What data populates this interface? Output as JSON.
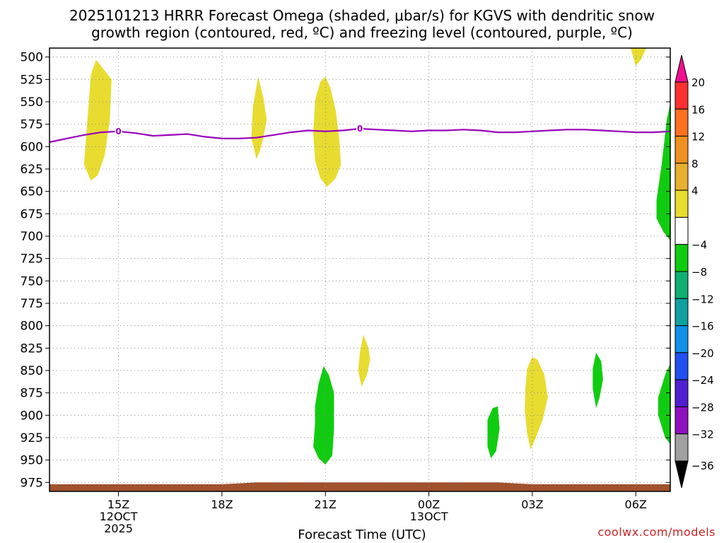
{
  "chart_data": {
    "type": "heatmap",
    "title_line1": "2025101213 HRRR Forecast Omega (shaded, μbar/s) for KGVS with dendritic snow",
    "title_line2": "growth region (contoured, red, ºC) and freezing level (contoured, purple, ºC)",
    "xlabel": "Forecast Time (UTC)",
    "credit": "coolwx.com/models",
    "x_range_hours": [
      13,
      31
    ],
    "y_range_hpa": [
      490,
      985
    ],
    "y_ticks": [
      500,
      525,
      550,
      575,
      600,
      625,
      650,
      675,
      700,
      725,
      750,
      775,
      800,
      825,
      850,
      875,
      900,
      925,
      950,
      975
    ],
    "x_ticks": [
      {
        "hour": 15,
        "lines": [
          "15Z",
          "12OCT",
          "2025"
        ]
      },
      {
        "hour": 18,
        "lines": [
          "18Z"
        ]
      },
      {
        "hour": 21,
        "lines": [
          "21Z"
        ]
      },
      {
        "hour": 24,
        "lines": [
          "00Z",
          "13OCT"
        ]
      },
      {
        "hour": 27,
        "lines": [
          "03Z"
        ]
      },
      {
        "hour": 30,
        "lines": [
          "06Z"
        ]
      }
    ],
    "grid": true,
    "colorbar": {
      "placement": "right",
      "levels": [
        {
          "label": "",
          "color": "#ee1090"
        },
        {
          "label": "20",
          "color": "#ff3030"
        },
        {
          "label": "16",
          "color": "#ff7020"
        },
        {
          "label": "12",
          "color": "#f09020"
        },
        {
          "label": "8",
          "color": "#e8b030"
        },
        {
          "label": "4",
          "color": "#e8dc30"
        },
        {
          "label": "",
          "color": "#ffffff"
        },
        {
          "label": "−4",
          "color": "#10cc10"
        },
        {
          "label": "−8",
          "color": "#10b070"
        },
        {
          "label": "−12",
          "color": "#10a0a0"
        },
        {
          "label": "−16",
          "color": "#1090e8"
        },
        {
          "label": "−20",
          "color": "#2050f0"
        },
        {
          "label": "−24",
          "color": "#5020d0"
        },
        {
          "label": "−28",
          "color": "#9010c0"
        },
        {
          "label": "−32",
          "color": "#a0a0a0"
        },
        {
          "label": "−36",
          "color": "#000000"
        }
      ]
    },
    "freezing_level": {
      "label": "0",
      "color": "#9900bb",
      "points": [
        [
          13.0,
          595
        ],
        [
          13.5,
          591
        ],
        [
          14.0,
          587
        ],
        [
          14.5,
          584
        ],
        [
          15.0,
          583
        ],
        [
          15.5,
          585
        ],
        [
          16.0,
          588
        ],
        [
          16.5,
          587
        ],
        [
          17.0,
          586
        ],
        [
          17.5,
          589
        ],
        [
          18.0,
          591
        ],
        [
          18.5,
          591
        ],
        [
          19.0,
          590
        ],
        [
          19.5,
          587
        ],
        [
          20.0,
          584
        ],
        [
          20.5,
          582
        ],
        [
          21.0,
          583
        ],
        [
          21.5,
          582
        ],
        [
          22.0,
          580
        ],
        [
          22.5,
          581
        ],
        [
          23.0,
          582
        ],
        [
          23.5,
          583
        ],
        [
          24.0,
          582
        ],
        [
          24.5,
          582
        ],
        [
          25.0,
          581
        ],
        [
          25.5,
          582
        ],
        [
          26.0,
          584
        ],
        [
          26.5,
          584
        ],
        [
          27.0,
          583
        ],
        [
          27.5,
          582
        ],
        [
          28.0,
          581
        ],
        [
          28.5,
          581
        ],
        [
          29.0,
          582
        ],
        [
          29.5,
          583
        ],
        [
          30.0,
          584
        ],
        [
          30.5,
          584
        ],
        [
          31.0,
          583
        ]
      ],
      "label_positions": [
        [
          15.0,
          583
        ],
        [
          22.0,
          580
        ]
      ]
    },
    "omega_regions": [
      {
        "color": "#e8dc30",
        "value_range": "4 to 8",
        "points": [
          [
            14.0,
            620
          ],
          [
            14.1,
            570
          ],
          [
            14.2,
            520
          ],
          [
            14.35,
            503
          ],
          [
            14.6,
            515
          ],
          [
            14.8,
            525
          ],
          [
            14.75,
            570
          ],
          [
            14.6,
            610
          ],
          [
            14.4,
            632
          ],
          [
            14.2,
            638
          ]
        ]
      },
      {
        "color": "#e8dc30",
        "value_range": "4 to 8",
        "points": [
          [
            18.85,
            590
          ],
          [
            18.9,
            555
          ],
          [
            19.05,
            522
          ],
          [
            19.2,
            545
          ],
          [
            19.3,
            570
          ],
          [
            19.2,
            590
          ],
          [
            19.1,
            605
          ],
          [
            19.0,
            614
          ],
          [
            18.95,
            605
          ]
        ]
      },
      {
        "color": "#e8dc30",
        "value_range": "4 to 8",
        "points": [
          [
            20.65,
            585
          ],
          [
            20.7,
            548
          ],
          [
            20.85,
            528
          ],
          [
            21.0,
            522
          ],
          [
            21.15,
            535
          ],
          [
            21.3,
            560
          ],
          [
            21.4,
            590
          ],
          [
            21.45,
            620
          ],
          [
            21.3,
            635
          ],
          [
            21.05,
            645
          ],
          [
            20.85,
            635
          ],
          [
            20.7,
            615
          ]
        ]
      },
      {
        "color": "#e8dc30",
        "value_range": "4 to 8",
        "points": [
          [
            22.0,
            830
          ],
          [
            22.1,
            810
          ],
          [
            22.25,
            825
          ],
          [
            22.3,
            838
          ],
          [
            22.2,
            855
          ],
          [
            22.05,
            868
          ],
          [
            21.95,
            850
          ]
        ]
      },
      {
        "color": "#e8dc30",
        "value_range": "4 to 8",
        "points": [
          [
            26.8,
            870
          ],
          [
            26.85,
            848
          ],
          [
            27.0,
            835
          ],
          [
            27.15,
            838
          ],
          [
            27.35,
            855
          ],
          [
            27.45,
            880
          ],
          [
            27.3,
            905
          ],
          [
            27.1,
            925
          ],
          [
            26.95,
            938
          ],
          [
            26.85,
            920
          ],
          [
            26.78,
            895
          ]
        ]
      },
      {
        "color": "#e8dc30",
        "value_range": "4 to 8",
        "points": [
          [
            29.85,
            490
          ],
          [
            30.3,
            490
          ],
          [
            30.15,
            503
          ],
          [
            30.0,
            510
          ]
        ]
      },
      {
        "color": "#10cc10",
        "value_range": "-4 to -8",
        "points": [
          [
            20.7,
            890
          ],
          [
            20.8,
            865
          ],
          [
            20.95,
            845
          ],
          [
            21.1,
            855
          ],
          [
            21.25,
            875
          ],
          [
            21.25,
            915
          ],
          [
            21.2,
            945
          ],
          [
            21.0,
            955
          ],
          [
            20.8,
            948
          ],
          [
            20.65,
            935
          ],
          [
            20.7,
            910
          ]
        ]
      },
      {
        "color": "#10cc10",
        "value_range": "-4 to -8",
        "points": [
          [
            25.7,
            905
          ],
          [
            25.85,
            892
          ],
          [
            26.0,
            890
          ],
          [
            26.05,
            915
          ],
          [
            25.95,
            940
          ],
          [
            25.8,
            948
          ],
          [
            25.7,
            935
          ]
        ]
      },
      {
        "color": "#10cc10",
        "value_range": "-4 to -8",
        "points": [
          [
            28.75,
            848
          ],
          [
            28.85,
            830
          ],
          [
            29.0,
            840
          ],
          [
            29.05,
            860
          ],
          [
            28.95,
            880
          ],
          [
            28.85,
            892
          ],
          [
            28.75,
            870
          ]
        ]
      },
      {
        "color": "#10cc10",
        "value_range": "-4 to -8",
        "points": [
          [
            30.65,
            880
          ],
          [
            30.85,
            855
          ],
          [
            31.0,
            842
          ],
          [
            31.0,
            932
          ],
          [
            30.85,
            925
          ],
          [
            30.65,
            900
          ]
        ]
      },
      {
        "color": "#10cc10",
        "value_range": "-4 to -8",
        "points": [
          [
            30.6,
            660
          ],
          [
            30.75,
            620
          ],
          [
            30.9,
            570
          ],
          [
            31.0,
            552
          ],
          [
            31.0,
            705
          ],
          [
            30.8,
            695
          ],
          [
            30.6,
            680
          ]
        ]
      }
    ],
    "terrain": {
      "color": "#a0522d",
      "points": [
        [
          13.0,
          985
        ],
        [
          13.0,
          977
        ],
        [
          18.0,
          977
        ],
        [
          18.5,
          976
        ],
        [
          19.0,
          975
        ],
        [
          22.0,
          975
        ],
        [
          24.0,
          975
        ],
        [
          25.5,
          975
        ],
        [
          26.0,
          975
        ],
        [
          26.5,
          976
        ],
        [
          27.0,
          977
        ],
        [
          31.0,
          977
        ],
        [
          31.0,
          985
        ]
      ]
    }
  }
}
